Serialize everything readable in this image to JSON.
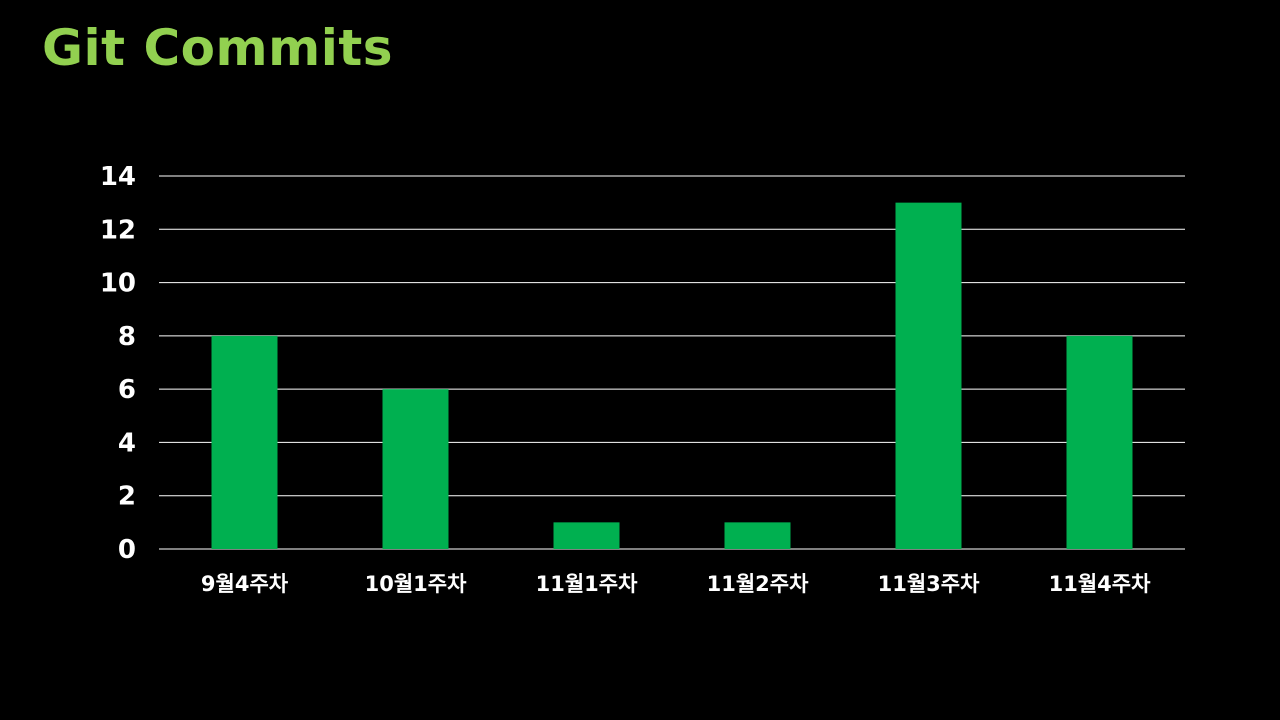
{
  "slide": {
    "title": "Git Commits",
    "title_color": "#92D050",
    "background": "#000000"
  },
  "chart_data": {
    "type": "bar",
    "title": "",
    "xlabel": "",
    "ylabel": "",
    "categories": [
      "9월4주차",
      "10월1주차",
      "11월1주차",
      "11월2주차",
      "11월3주차",
      "11월4주차"
    ],
    "values": [
      8,
      6,
      1,
      1,
      13,
      8
    ],
    "ylim": [
      0,
      14
    ],
    "yticks": [
      0,
      2,
      4,
      6,
      8,
      10,
      12,
      14
    ],
    "grid": true,
    "legend": "none",
    "bar_color": "#00B050",
    "grid_color": "#ffffff",
    "label_color": "#ffffff"
  }
}
